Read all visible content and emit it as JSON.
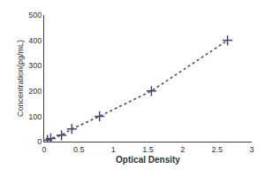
{
  "chart_data": {
    "type": "line",
    "x": [
      0.047,
      0.095,
      0.25,
      0.4,
      0.8,
      1.55,
      2.65
    ],
    "values": [
      6.25,
      12.5,
      25,
      50,
      100,
      200,
      400
    ],
    "xlabel": "Optical Density",
    "ylabel": "Concentration(pg/mL)",
    "xlim": [
      0,
      3
    ],
    "ylim": [
      0,
      500
    ],
    "xticks": [
      0,
      0.5,
      1,
      1.5,
      2,
      2.5,
      3
    ],
    "yticks": [
      0,
      100,
      200,
      300,
      400,
      500
    ],
    "color": "#444466",
    "line_style": "dotted",
    "marker": "plus",
    "grid": false
  }
}
